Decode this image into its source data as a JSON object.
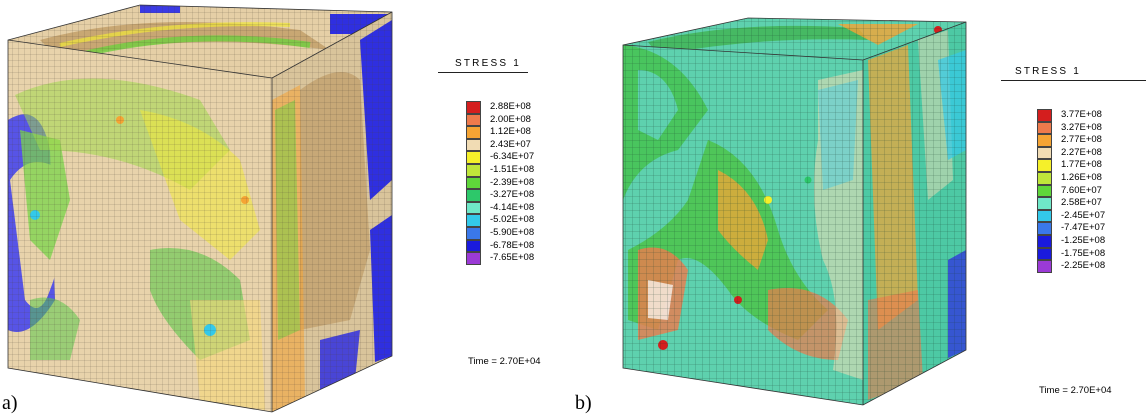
{
  "panels": [
    {
      "caption": "a)",
      "legend": {
        "title": "STRESS 1",
        "entries": [
          {
            "value": "2.88E+08",
            "color": "#d41e1e"
          },
          {
            "value": "2.00E+08",
            "color": "#ee7a4c"
          },
          {
            "value": "1.12E+08",
            "color": "#f5a434"
          },
          {
            "value": "2.43E+07",
            "color": "#f1dcb4"
          },
          {
            "value": "-6.34E+07",
            "color": "#f5f02a"
          },
          {
            "value": "-1.51E+08",
            "color": "#bfe63a"
          },
          {
            "value": "-2.39E+08",
            "color": "#5fd63a"
          },
          {
            "value": "-3.27E+08",
            "color": "#2dc86a"
          },
          {
            "value": "-4.14E+08",
            "color": "#6fe8c8"
          },
          {
            "value": "-5.02E+08",
            "color": "#33c9ea"
          },
          {
            "value": "-5.90E+08",
            "color": "#3a78ea"
          },
          {
            "value": "-6.78E+08",
            "color": "#1a1add"
          },
          {
            "value": "-7.65E+08",
            "color": "#9b3ad6"
          }
        ]
      },
      "time": "Time = 2.70E+04"
    },
    {
      "caption": "b)",
      "legend": {
        "title": "STRESS 1",
        "entries": [
          {
            "value": "3.77E+08",
            "color": "#d41e1e"
          },
          {
            "value": "3.27E+08",
            "color": "#ee7a4c"
          },
          {
            "value": "2.77E+08",
            "color": "#f5a434"
          },
          {
            "value": "2.27E+08",
            "color": "#f1dcb4"
          },
          {
            "value": "1.77E+08",
            "color": "#f5f02a"
          },
          {
            "value": "1.26E+08",
            "color": "#bfe63a"
          },
          {
            "value": "7.60E+07",
            "color": "#5fd63a"
          },
          {
            "value": "2.58E+07",
            "color": "#6fe8c8"
          },
          {
            "value": "-2.45E+07",
            "color": "#33c9ea"
          },
          {
            "value": "-7.47E+07",
            "color": "#3a78ea"
          },
          {
            "value": "-1.25E+08",
            "color": "#1a1add"
          },
          {
            "value": "-1.75E+08",
            "color": "#1a1add"
          },
          {
            "value": "-2.25E+08",
            "color": "#9b3ad6"
          }
        ]
      },
      "time": "Time = 2.70E+04"
    }
  ]
}
